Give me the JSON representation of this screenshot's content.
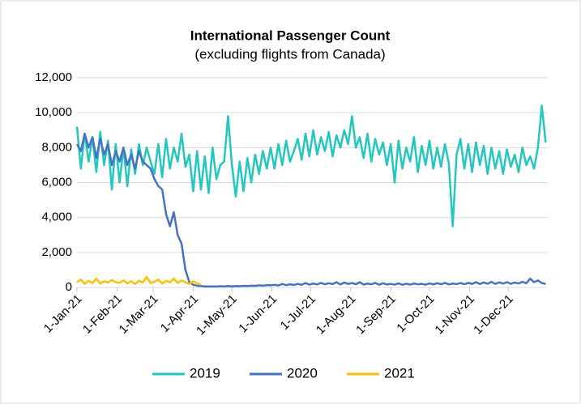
{
  "chart_data": {
    "type": "line",
    "title": "International Passenger Count",
    "subtitle": "(excluding flights from Canada)",
    "x": [
      1,
      4,
      7,
      10,
      13,
      16,
      19,
      22,
      25,
      28,
      31,
      34,
      37,
      40,
      43,
      46,
      49,
      52,
      55,
      58,
      61,
      64,
      67,
      70,
      73,
      76,
      79,
      82,
      85,
      88,
      91,
      94,
      97,
      100,
      103,
      106,
      109,
      112,
      115,
      118,
      121,
      124,
      127,
      130,
      133,
      136,
      139,
      142,
      145,
      148,
      151,
      154,
      157,
      160,
      163,
      166,
      169,
      172,
      175,
      178,
      181,
      184,
      187,
      190,
      193,
      196,
      199,
      202,
      205,
      208,
      211,
      214,
      217,
      220,
      223,
      226,
      229,
      232,
      235,
      238,
      241,
      244,
      247,
      250,
      253,
      256,
      259,
      262,
      265,
      268,
      271,
      274,
      277,
      280,
      283,
      286,
      289,
      292,
      295,
      298,
      301,
      304,
      307,
      310,
      313,
      316,
      319,
      322,
      325,
      328,
      331,
      334,
      337,
      340,
      343,
      346,
      349,
      352,
      355,
      358,
      361,
      364
    ],
    "xlim": [
      1,
      365
    ],
    "xticks": [
      {
        "value": 1,
        "label": "1-Jan-21"
      },
      {
        "value": 32,
        "label": "1-Feb-21"
      },
      {
        "value": 60,
        "label": "1-Mar-21"
      },
      {
        "value": 91,
        "label": "1-Apr-21"
      },
      {
        "value": 121,
        "label": "1-May-21"
      },
      {
        "value": 152,
        "label": "1-Jun-21"
      },
      {
        "value": 182,
        "label": "1-Jul-21"
      },
      {
        "value": 213,
        "label": "1-Aug-21"
      },
      {
        "value": 244,
        "label": "1-Sep-21"
      },
      {
        "value": 274,
        "label": "1-Oct-21"
      },
      {
        "value": 305,
        "label": "1-Nov-21"
      },
      {
        "value": 335,
        "label": "1-Dec-21"
      }
    ],
    "ylim": [
      0,
      12000
    ],
    "yticks": [
      0,
      {
        "value": 2000,
        "label": "2,000"
      },
      {
        "value": 4000,
        "label": "4,000"
      },
      {
        "value": 6000,
        "label": "6,000"
      },
      {
        "value": 8000,
        "label": "8,000"
      },
      {
        "value": 10000,
        "label": "10,000"
      },
      {
        "value": 12000,
        "label": "12,000"
      }
    ],
    "grid": true,
    "legend": "bottom",
    "series": [
      {
        "name": "2019",
        "color": "#22c7bd",
        "values": [
          9200,
          6800,
          8800,
          7200,
          8600,
          6600,
          8900,
          7000,
          8400,
          5600,
          8200,
          6000,
          8000,
          5800,
          7900,
          6500,
          8200,
          7000,
          8000,
          7200,
          6500,
          8200,
          6300,
          8500,
          6800,
          8000,
          7200,
          8800,
          6900,
          7600,
          5500,
          7800,
          5600,
          7500,
          5400,
          8000,
          6200,
          7000,
          7200,
          9800,
          7000,
          5200,
          7200,
          5500,
          7400,
          6000,
          7600,
          6500,
          7800,
          6800,
          8000,
          6800,
          8200,
          7000,
          8400,
          7200,
          7800,
          8500,
          7300,
          8800,
          7500,
          9000,
          7600,
          8600,
          7800,
          8900,
          7500,
          8700,
          8000,
          9000,
          8200,
          9800,
          8000,
          8600,
          7400,
          8800,
          7200,
          8500,
          7600,
          8300,
          7000,
          8200,
          6000,
          8400,
          6800,
          8000,
          7200,
          8600,
          6600,
          8100,
          7000,
          8400,
          6800,
          8000,
          6900,
          8200,
          7100,
          3500,
          7600,
          8500,
          6800,
          8200,
          6600,
          8300,
          7000,
          8100,
          6500,
          8000,
          6800,
          7800,
          6500,
          7900,
          6900,
          7600,
          6600,
          8000,
          7000,
          7500,
          6800,
          8000,
          10400,
          8300
        ]
      },
      {
        "name": "2020",
        "color": "#4472c4",
        "values": [
          8200,
          7800,
          8800,
          8000,
          8600,
          7400,
          8500,
          7600,
          8200,
          7000,
          7800,
          7200,
          8000,
          7000,
          7600,
          6800,
          7800,
          7200,
          7000,
          6800,
          6200,
          5800,
          5600,
          4200,
          3500,
          4300,
          3000,
          2500,
          1000,
          300,
          150,
          100,
          80,
          60,
          50,
          60,
          50,
          70,
          60,
          80,
          60,
          80,
          70,
          90,
          80,
          100,
          90,
          120,
          100,
          130,
          120,
          150,
          110,
          200,
          130,
          180,
          140,
          200,
          150,
          250,
          160,
          220,
          170,
          260,
          180,
          240,
          190,
          300,
          170,
          280,
          200,
          250,
          180,
          300,
          160,
          220,
          180,
          260,
          150,
          240,
          170,
          200,
          160,
          230,
          150,
          210,
          160,
          220,
          180,
          200,
          160,
          230,
          170,
          240,
          180,
          260,
          170,
          220,
          190,
          250,
          180,
          260,
          200,
          300,
          190,
          280,
          210,
          320,
          200,
          290,
          220,
          300,
          210,
          280,
          230,
          320,
          240,
          500,
          300,
          400,
          250,
          200
        ]
      },
      {
        "name": "2021",
        "color": "#ffc000",
        "values": [
          300,
          450,
          200,
          380,
          250,
          500,
          220,
          350,
          280,
          420,
          300,
          260,
          400,
          230,
          350,
          200,
          380,
          280,
          600,
          250,
          320,
          450,
          220,
          380,
          300,
          500,
          260,
          400,
          300,
          200,
          350,
          250,
          150,
          null,
          null,
          null,
          null,
          null,
          null,
          null,
          null,
          null,
          null,
          null,
          null,
          null,
          null,
          null,
          null,
          null,
          null,
          null,
          null,
          null,
          null,
          null,
          null,
          null,
          null,
          null,
          null,
          null,
          null,
          null,
          null,
          null,
          null,
          null,
          null,
          null,
          null,
          null,
          null,
          null,
          null,
          null,
          null,
          null,
          null,
          null,
          null,
          null,
          null,
          null,
          null,
          null,
          null,
          null,
          null,
          null,
          null,
          null,
          null,
          null,
          null,
          null,
          null,
          null,
          null,
          null,
          null,
          null,
          null,
          null,
          null,
          null,
          null,
          null,
          null,
          null,
          null,
          null,
          null,
          null,
          null,
          null,
          null,
          null,
          null,
          null,
          null,
          null
        ]
      }
    ]
  }
}
